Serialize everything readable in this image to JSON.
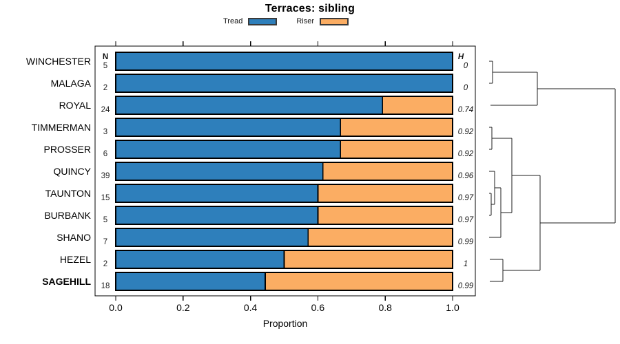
{
  "chart_data": {
    "type": "bar",
    "orientation": "horizontal",
    "stacked": true,
    "title": "Terraces: sibling",
    "xlabel": "Proportion",
    "xlim": [
      0,
      1.07
    ],
    "xticks": [
      0.0,
      0.2,
      0.4,
      0.6,
      0.8,
      1.0
    ],
    "xtick_labels": [
      "0.0",
      "0.2",
      "0.4",
      "0.6",
      "0.8",
      "1.0"
    ],
    "grid": false,
    "legend": [
      {
        "label": "Tread",
        "color": "#2e7fbb"
      },
      {
        "label": "Riser",
        "color": "#fbad63"
      }
    ],
    "col_headers": {
      "n": "N",
      "h": "H"
    },
    "rows": [
      {
        "label": "WINCHESTER",
        "n": 5,
        "tread": 1.0,
        "riser": 0.0,
        "h": "0",
        "bold": false
      },
      {
        "label": "MALAGA",
        "n": 2,
        "tread": 1.0,
        "riser": 0.0,
        "h": "0",
        "bold": false
      },
      {
        "label": "ROYAL",
        "n": 24,
        "tread": 0.792,
        "riser": 0.208,
        "h": "0.74",
        "bold": false
      },
      {
        "label": "TIMMERMAN",
        "n": 3,
        "tread": 0.667,
        "riser": 0.333,
        "h": "0.92",
        "bold": false
      },
      {
        "label": "PROSSER",
        "n": 6,
        "tread": 0.667,
        "riser": 0.333,
        "h": "0.92",
        "bold": false
      },
      {
        "label": "QUINCY",
        "n": 39,
        "tread": 0.615,
        "riser": 0.385,
        "h": "0.96",
        "bold": false
      },
      {
        "label": "TAUNTON",
        "n": 15,
        "tread": 0.6,
        "riser": 0.4,
        "h": "0.97",
        "bold": false
      },
      {
        "label": "BURBANK",
        "n": 5,
        "tread": 0.6,
        "riser": 0.4,
        "h": "0.97",
        "bold": false
      },
      {
        "label": "SHANO",
        "n": 7,
        "tread": 0.571,
        "riser": 0.429,
        "h": "0.99",
        "bold": false
      },
      {
        "label": "HEZEL",
        "n": 2,
        "tread": 0.5,
        "riser": 0.5,
        "h": "1",
        "bold": false
      },
      {
        "label": "SAGEHILL",
        "n": 18,
        "tread": 0.444,
        "riser": 0.556,
        "h": "0.99",
        "bold": true
      }
    ],
    "dendrogram": {
      "orientation": "right-of-bars",
      "segments": [
        [
          710,
          89,
          715,
          89
        ],
        [
          710,
          121,
          715,
          121
        ],
        [
          715,
          89,
          715,
          121
        ],
        [
          715,
          105,
          780,
          105
        ],
        [
          712,
          153,
          780,
          153
        ],
        [
          780,
          105,
          780,
          153
        ],
        [
          780,
          129,
          893,
          129
        ],
        [
          710,
          185,
          714,
          185
        ],
        [
          710,
          217,
          714,
          217
        ],
        [
          714,
          185,
          714,
          217
        ],
        [
          714,
          201,
          743,
          201
        ],
        [
          710,
          281,
          713,
          281
        ],
        [
          710,
          313,
          713,
          313
        ],
        [
          713,
          281,
          713,
          313
        ],
        [
          713,
          297,
          718,
          297
        ],
        [
          710,
          249,
          718,
          249
        ],
        [
          718,
          249,
          718,
          297
        ],
        [
          718,
          273,
          727,
          273
        ],
        [
          710,
          345,
          727,
          345
        ],
        [
          727,
          273,
          727,
          345
        ],
        [
          727,
          309,
          743,
          309
        ],
        [
          743,
          201,
          743,
          309
        ],
        [
          743,
          255,
          784,
          255
        ],
        [
          711,
          377,
          730,
          377
        ],
        [
          711,
          409,
          730,
          409
        ],
        [
          730,
          377,
          730,
          409
        ],
        [
          730,
          393,
          784,
          393
        ],
        [
          784,
          255,
          784,
          393
        ],
        [
          784,
          324,
          893,
          324
        ],
        [
          893,
          129,
          893,
          324
        ]
      ]
    }
  }
}
